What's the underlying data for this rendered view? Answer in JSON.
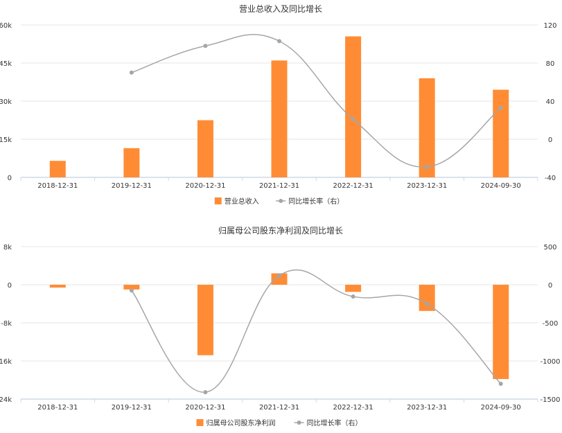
{
  "chart_data": [
    {
      "type": "bar",
      "title": "营业总收入及同比增长",
      "categories": [
        "2018-12-31",
        "2019-12-31",
        "2020-12-31",
        "2021-12-31",
        "2022-12-31",
        "2023-12-31",
        "2024-09-30"
      ],
      "y_left_ticks": [
        "0",
        "15k",
        "30k",
        "45k",
        "60k"
      ],
      "y_left_range": [
        0,
        60000
      ],
      "y_right_ticks": [
        "-40",
        "0",
        "40",
        "80",
        "120"
      ],
      "y_right_range": [
        -40,
        120
      ],
      "series": [
        {
          "name": "营业总收入",
          "kind": "bar",
          "axis": "left",
          "color": "#ff8c35",
          "values": [
            6500,
            11500,
            22500,
            46000,
            55500,
            39000,
            34500
          ]
        },
        {
          "name": "同比增长率（右）",
          "kind": "line",
          "axis": "right",
          "color": "#a6a6a6",
          "values": [
            null,
            70,
            98,
            103,
            21,
            -29,
            33
          ]
        }
      ],
      "legend_position": "bottom-center"
    },
    {
      "type": "bar",
      "title": "归属母公司股东净利润及同比增长",
      "categories": [
        "2018-12-31",
        "2019-12-31",
        "2020-12-31",
        "2021-12-31",
        "2022-12-31",
        "2023-12-31",
        "2024-09-30"
      ],
      "y_left_ticks": [
        "-24k",
        "-16k",
        "-8k",
        "0",
        "8k"
      ],
      "y_left_range": [
        -24000,
        8000
      ],
      "y_right_ticks": [
        "-1500",
        "-1000",
        "-500",
        "0",
        "500"
      ],
      "y_right_range": [
        -1500,
        500
      ],
      "series": [
        {
          "name": "归属母公司股东净利润",
          "kind": "bar",
          "axis": "left",
          "color": "#ff8c35",
          "values": [
            -600,
            -1000,
            -14800,
            2400,
            -1500,
            -5500,
            -19800
          ]
        },
        {
          "name": "同比增长率（右）",
          "kind": "line",
          "axis": "right",
          "color": "#a6a6a6",
          "values": [
            null,
            -75,
            -1410,
            120,
            -155,
            -250,
            -1300
          ]
        }
      ],
      "legend_position": "bottom-center"
    }
  ]
}
